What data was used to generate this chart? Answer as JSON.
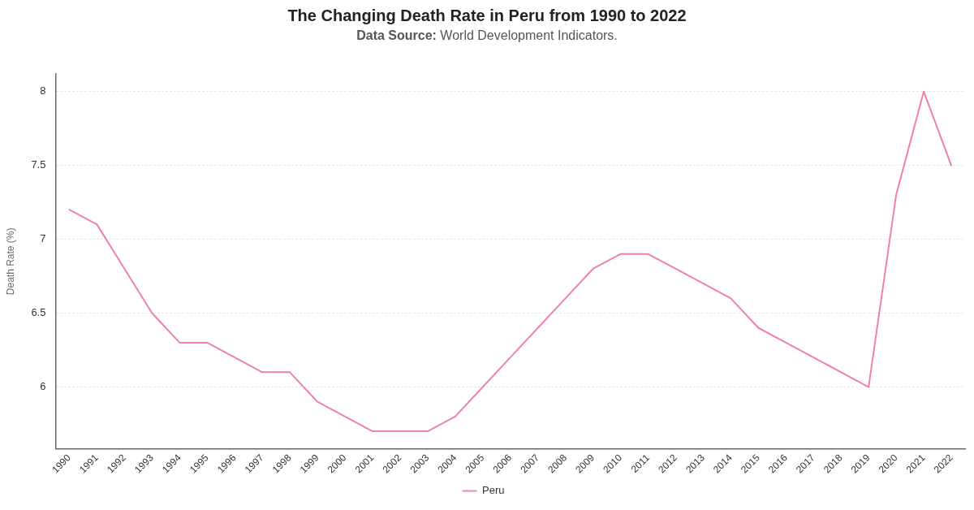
{
  "chart_data": {
    "type": "line",
    "title": "The Changing Death Rate in Peru from 1990 to 2022",
    "subtitle": "Data Source: World Development Indicators.",
    "ylabel": "Death Rate (%)",
    "categories": [
      "1990",
      "1991",
      "1992",
      "1993",
      "1994",
      "1995",
      "1996",
      "1997",
      "1998",
      "1999",
      "2000",
      "2001",
      "2002",
      "2003",
      "2004",
      "2005",
      "2006",
      "2007",
      "2008",
      "2009",
      "2010",
      "2011",
      "2012",
      "2013",
      "2014",
      "2015",
      "2016",
      "2017",
      "2018",
      "2019",
      "2020",
      "2021",
      "2022"
    ],
    "series": [
      {
        "name": "Peru",
        "color": "#f080aa",
        "values": [
          7.2,
          7.1,
          6.8,
          6.5,
          6.3,
          6.3,
          6.2,
          6.1,
          6.1,
          5.9,
          5.8,
          5.7,
          5.7,
          5.7,
          5.8,
          6.0,
          6.2,
          6.4,
          6.6,
          6.8,
          6.9,
          6.9,
          6.8,
          6.7,
          6.6,
          6.4,
          6.3,
          6.2,
          6.1,
          6.0,
          7.3,
          8.0,
          7.5
        ]
      }
    ],
    "ylim": [
      5.58,
      8.12
    ],
    "yticks": [
      6,
      6.5,
      7,
      7.5,
      8
    ],
    "grid": "y",
    "legend": "bottom",
    "marker": "none",
    "line_style": "solid"
  }
}
